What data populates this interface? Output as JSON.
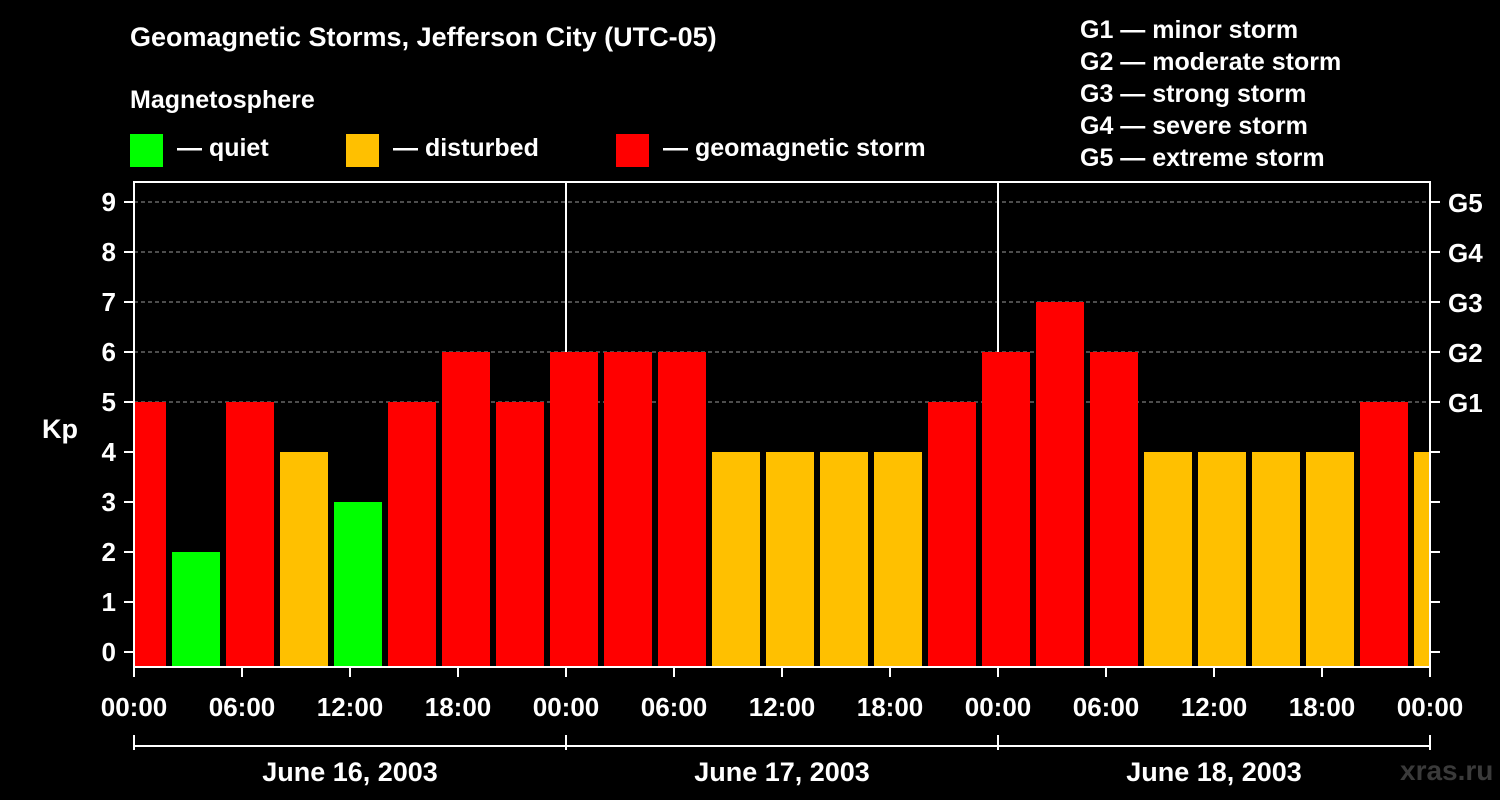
{
  "title": "Geomagnetic Storms, Jefferson City (UTC-05)",
  "magnetosphere": {
    "title": "Magnetosphere",
    "items": [
      {
        "label": "— quiet",
        "color": "#00ff00"
      },
      {
        "label": "— disturbed",
        "color": "#ffc000"
      },
      {
        "label": "— geomagnetic storm",
        "color": "#ff0000"
      }
    ]
  },
  "storm_scale": [
    "G1 — minor storm",
    "G2 — moderate storm",
    "G3 — strong storm",
    "G4 — severe storm",
    "G5 — extreme storm"
  ],
  "watermark": "xras.ru",
  "chart_data": {
    "type": "bar",
    "title": "Geomagnetic Storms, Jefferson City (UTC-05)",
    "ylabel": "Kp",
    "ylim": [
      0,
      9
    ],
    "yticks": [
      "0",
      "1",
      "2",
      "3",
      "4",
      "5",
      "6",
      "7",
      "8",
      "9"
    ],
    "right_ticks": [
      {
        "kp": 5,
        "label": "G1"
      },
      {
        "kp": 6,
        "label": "G2"
      },
      {
        "kp": 7,
        "label": "G3"
      },
      {
        "kp": 8,
        "label": "G4"
      },
      {
        "kp": 9,
        "label": "G5"
      }
    ],
    "grid": "dashed at Kp 5-9",
    "x_range_hours": [
      0,
      72
    ],
    "xtick_labels": [
      "00:00",
      "06:00",
      "12:00",
      "18:00",
      "00:00",
      "06:00",
      "12:00",
      "18:00",
      "00:00",
      "06:00",
      "12:00",
      "18:00",
      "00:00"
    ],
    "dates": [
      "June 16, 2003",
      "June 17, 2003",
      "June 18, 2003"
    ],
    "bars": [
      {
        "start": -1.0,
        "kp": 5,
        "level": "storm"
      },
      {
        "start": 2.0,
        "kp": 2,
        "level": "quiet"
      },
      {
        "start": 5.0,
        "kp": 5,
        "level": "storm"
      },
      {
        "start": 8.0,
        "kp": 4,
        "level": "disturbed"
      },
      {
        "start": 11.0,
        "kp": 3,
        "level": "quiet"
      },
      {
        "start": 14.0,
        "kp": 5,
        "level": "storm"
      },
      {
        "start": 17.0,
        "kp": 6,
        "level": "storm"
      },
      {
        "start": 20.0,
        "kp": 5,
        "level": "storm"
      },
      {
        "start": 23.0,
        "kp": 6,
        "level": "storm"
      },
      {
        "start": 26.0,
        "kp": 6,
        "level": "storm"
      },
      {
        "start": 29.0,
        "kp": 6,
        "level": "storm"
      },
      {
        "start": 32.0,
        "kp": 4,
        "level": "disturbed"
      },
      {
        "start": 35.0,
        "kp": 4,
        "level": "disturbed"
      },
      {
        "start": 38.0,
        "kp": 4,
        "level": "disturbed"
      },
      {
        "start": 41.0,
        "kp": 4,
        "level": "disturbed"
      },
      {
        "start": 44.0,
        "kp": 5,
        "level": "storm"
      },
      {
        "start": 47.0,
        "kp": 6,
        "level": "storm"
      },
      {
        "start": 50.0,
        "kp": 7,
        "level": "storm"
      },
      {
        "start": 53.0,
        "kp": 6,
        "level": "storm"
      },
      {
        "start": 56.0,
        "kp": 4,
        "level": "disturbed"
      },
      {
        "start": 59.0,
        "kp": 4,
        "level": "disturbed"
      },
      {
        "start": 62.0,
        "kp": 4,
        "level": "disturbed"
      },
      {
        "start": 65.0,
        "kp": 4,
        "level": "disturbed"
      },
      {
        "start": 68.0,
        "kp": 5,
        "level": "storm"
      },
      {
        "start": 71.0,
        "kp": 4,
        "level": "disturbed"
      }
    ],
    "bar_duration_hours": 3,
    "level_colors": {
      "quiet": "#00ff00",
      "disturbed": "#ffc000",
      "storm": "#ff0000"
    }
  }
}
